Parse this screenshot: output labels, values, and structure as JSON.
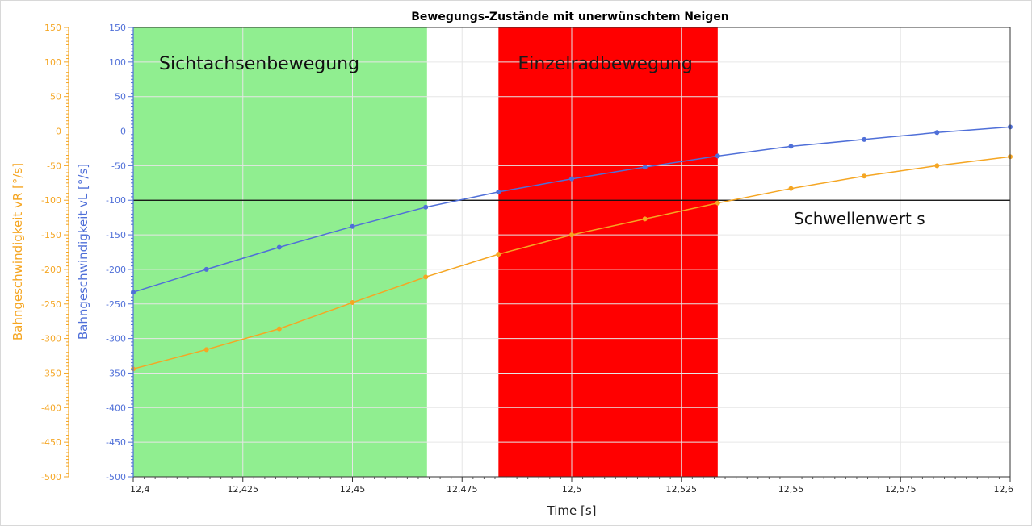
{
  "chart_data": {
    "type": "line",
    "title": "Bewegungs-Zustände mit unerwünschtem Neigen",
    "xlabel": "Time [s]",
    "x_range": [
      12.4,
      12.6
    ],
    "x_ticks": [
      "12,4",
      "12,425",
      "12,45",
      "12,475",
      "12,5",
      "12,525",
      "12,55",
      "12,575",
      "12,6"
    ],
    "y_axes": [
      {
        "label": "Bahngeschwindigkeit vL [°/s]",
        "color": "#4f6fd8",
        "range": [
          -500,
          150
        ],
        "ticks": [
          "150",
          "100",
          "50",
          "0",
          "-50",
          "-100",
          "-150",
          "-200",
          "-250",
          "-300",
          "-350",
          "-400",
          "-450",
          "-500"
        ]
      },
      {
        "label": "Bahngeschwindigkeit vR [°/s]",
        "color": "#f5a623",
        "range": [
          -500,
          150
        ],
        "ticks": [
          "150",
          "100",
          "50",
          "0",
          "-50",
          "-100",
          "-150",
          "-200",
          "-250",
          "-300",
          "-350",
          "-400",
          "-450",
          "-500"
        ]
      }
    ],
    "series": [
      {
        "axis": 0,
        "color": "#4f6fd8",
        "x": [
          12.4,
          12.4167,
          12.4333,
          12.45,
          12.4667,
          12.4833,
          12.5,
          12.5167,
          12.5333,
          12.55,
          12.5667,
          12.5833,
          12.6
        ],
        "y": [
          -233,
          -200,
          -168,
          -138,
          -110,
          -88,
          -69,
          -52,
          -36,
          -22,
          -12,
          -2,
          6
        ]
      },
      {
        "axis": 1,
        "color": "#f5a623",
        "x": [
          12.4,
          12.4167,
          12.4333,
          12.45,
          12.4667,
          12.4833,
          12.5,
          12.5167,
          12.5333,
          12.55,
          12.5667,
          12.5833,
          12.6
        ],
        "y": [
          -344,
          -316,
          -286,
          -248,
          -211,
          -178,
          -150,
          -127,
          -104,
          -83,
          -65,
          -50,
          -37
        ]
      }
    ],
    "threshold": {
      "value": -100,
      "label": "Schwellenwert s",
      "color": "#000000"
    },
    "regions": [
      {
        "x0": 12.4,
        "x1": 12.467,
        "color": "#90ee90",
        "label": "Sichtachsenbewegung"
      },
      {
        "x0": 12.4833,
        "x1": 12.5333,
        "color": "#ff0000",
        "label": "Einzelradbewegung"
      }
    ],
    "grid": true
  }
}
